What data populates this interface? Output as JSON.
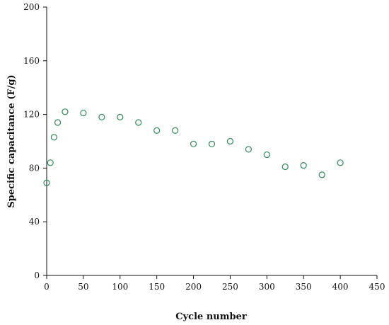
{
  "chart_data": {
    "type": "scatter",
    "title": "",
    "xlabel": "Cycle number",
    "ylabel": "Specific capacitance (F/g)",
    "xlim": [
      0,
      450
    ],
    "ylim": [
      0,
      200
    ],
    "x_ticks": [
      0,
      50,
      100,
      150,
      200,
      250,
      300,
      350,
      400,
      450
    ],
    "y_ticks": [
      0,
      40,
      80,
      120,
      160,
      200
    ],
    "grid": false,
    "legend": "none",
    "marker": "open-circle",
    "series": [
      {
        "color": "#2e8b57",
        "points": [
          {
            "x": 0,
            "y": 69
          },
          {
            "x": 5,
            "y": 84
          },
          {
            "x": 10,
            "y": 103
          },
          {
            "x": 15,
            "y": 114
          },
          {
            "x": 25,
            "y": 122
          },
          {
            "x": 50,
            "y": 121
          },
          {
            "x": 75,
            "y": 118
          },
          {
            "x": 100,
            "y": 118
          },
          {
            "x": 125,
            "y": 114
          },
          {
            "x": 150,
            "y": 108
          },
          {
            "x": 175,
            "y": 108
          },
          {
            "x": 200,
            "y": 98
          },
          {
            "x": 225,
            "y": 98
          },
          {
            "x": 250,
            "y": 100
          },
          {
            "x": 275,
            "y": 94
          },
          {
            "x": 300,
            "y": 90
          },
          {
            "x": 325,
            "y": 81
          },
          {
            "x": 350,
            "y": 82
          },
          {
            "x": 375,
            "y": 75
          },
          {
            "x": 400,
            "y": 84
          }
        ]
      }
    ]
  }
}
